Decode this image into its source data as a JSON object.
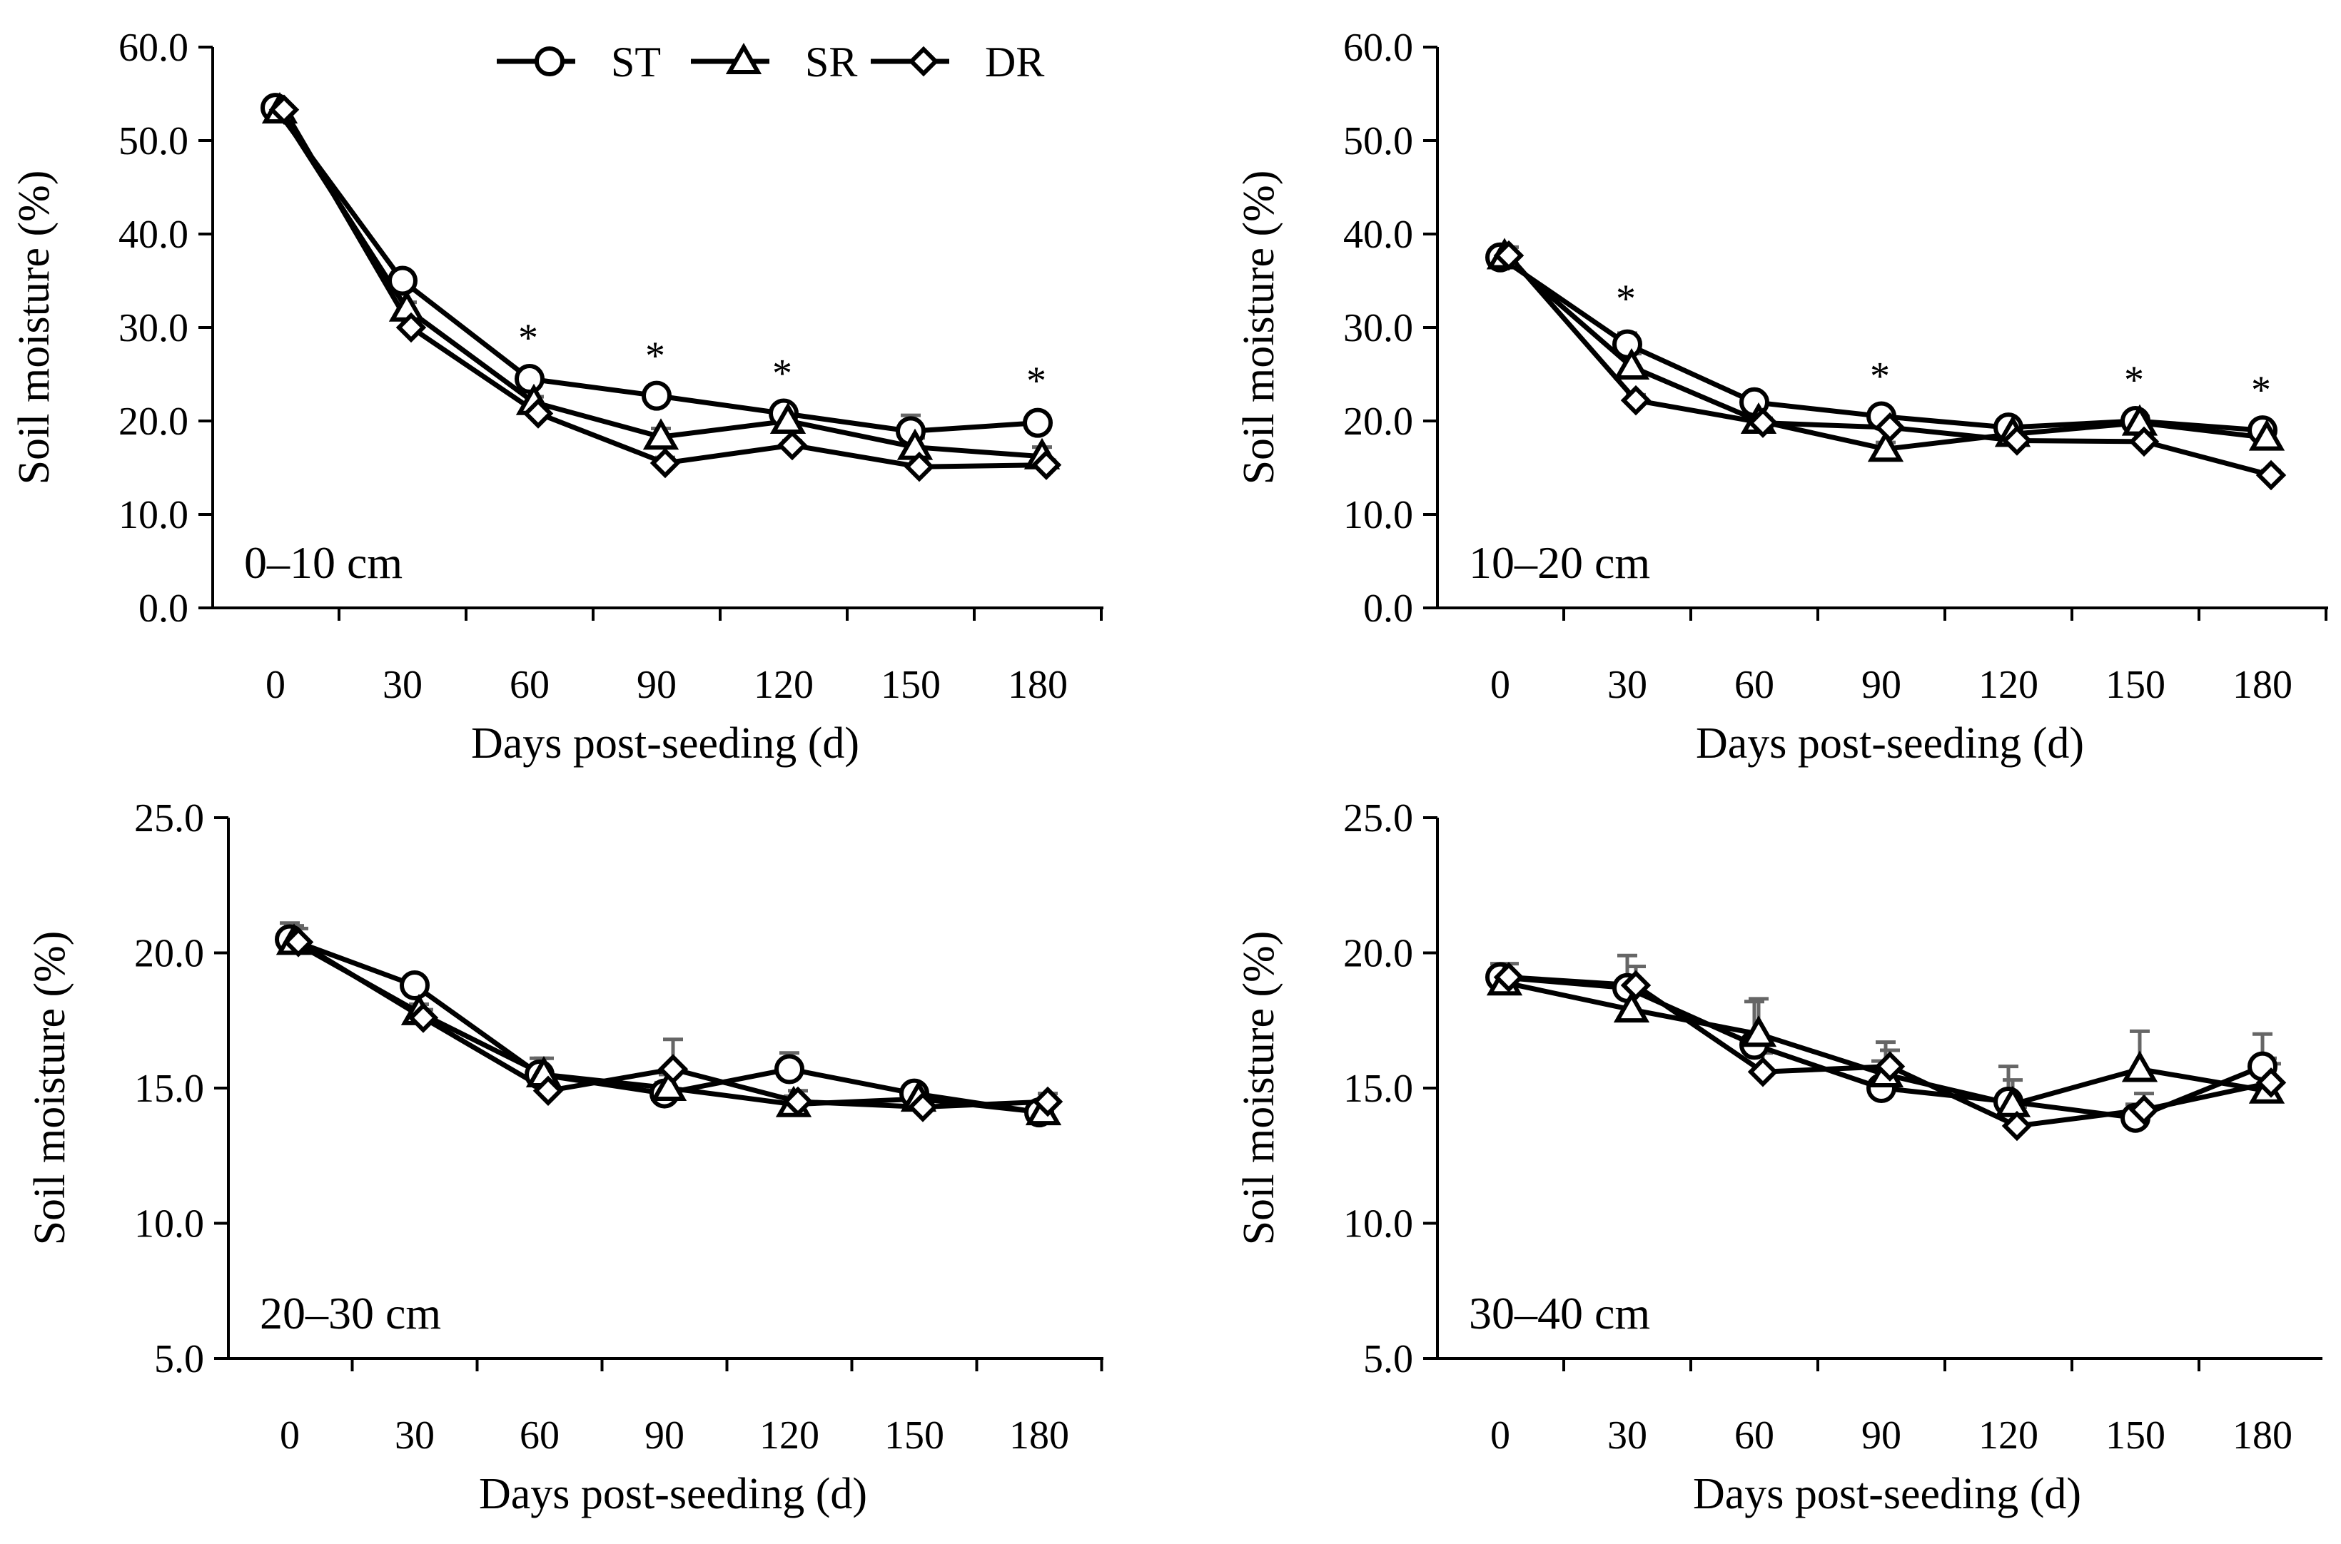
{
  "chart_data": [
    {
      "type": "line",
      "panel_label": "0–10 cm",
      "xlabel": "Days  post-seeding (d)",
      "ylabel": "Soil moisture (%)",
      "categories": [
        "0",
        "30",
        "60",
        "90",
        "120",
        "150",
        "180"
      ],
      "x": [
        0,
        30,
        60,
        90,
        120,
        150,
        180
      ],
      "ylim": [
        0,
        60
      ],
      "yticks": [
        "0.0",
        "10.0",
        "20.0",
        "30.0",
        "40.0",
        "50.0",
        "60.0"
      ],
      "series": [
        {
          "name": "ST",
          "values": [
            53.5,
            35.0,
            24.5,
            22.7,
            20.8,
            18.9,
            19.8
          ],
          "err": [
            0.5,
            0.6,
            0.7,
            0.6,
            0.6,
            1.7,
            0.8
          ]
        },
        {
          "name": "SR",
          "values": [
            53.2,
            32.0,
            22.0,
            18.3,
            20.0,
            17.2,
            16.2
          ],
          "err": [
            0.5,
            0.7,
            0.6,
            0.9,
            0.7,
            1.0,
            1.0
          ]
        },
        {
          "name": "DR",
          "values": [
            53.3,
            30.0,
            20.8,
            15.5,
            17.4,
            15.1,
            15.3
          ],
          "err": [
            0.4,
            0.5,
            0.5,
            0.6,
            0.5,
            0.5,
            0.5
          ]
        }
      ],
      "significance": [
        {
          "x": 60,
          "label": "*"
        },
        {
          "x": 90,
          "label": "*"
        },
        {
          "x": 120,
          "label": "*"
        },
        {
          "x": 180,
          "label": "*"
        }
      ],
      "legend": {
        "entries": [
          "ST",
          "SR",
          "DR"
        ],
        "placement": "top-right"
      }
    },
    {
      "type": "line",
      "panel_label": "10–20 cm",
      "xlabel": "Days  post-seeding (d)",
      "ylabel": "Soil moisture (%)",
      "categories": [
        "0",
        "30",
        "60",
        "90",
        "120",
        "150",
        "180"
      ],
      "x": [
        0,
        30,
        60,
        90,
        120,
        150,
        180
      ],
      "ylim": [
        0,
        60
      ],
      "yticks": [
        "0.0",
        "10.0",
        "20.0",
        "30.0",
        "40.0",
        "50.0",
        "60.0"
      ],
      "series": [
        {
          "name": "ST",
          "values": [
            37.5,
            28.2,
            22.0,
            20.5,
            19.3,
            20.0,
            19.0
          ],
          "err": [
            1.0,
            1.2,
            0.6,
            0.6,
            0.5,
            0.7,
            0.6
          ]
        },
        {
          "name": "SR",
          "values": [
            37.6,
            25.8,
            20.0,
            17.0,
            18.6,
            19.8,
            18.2
          ],
          "err": [
            1.0,
            1.4,
            0.6,
            0.7,
            0.6,
            0.7,
            0.6
          ]
        },
        {
          "name": "DR",
          "values": [
            37.7,
            22.2,
            19.8,
            19.3,
            17.9,
            17.8,
            14.2
          ],
          "err": [
            0.9,
            0.6,
            0.5,
            0.5,
            0.5,
            0.5,
            0.5
          ]
        }
      ],
      "significance": [
        {
          "x": 30,
          "label": "*"
        },
        {
          "x": 90,
          "label": "*"
        },
        {
          "x": 150,
          "label": "*"
        },
        {
          "x": 180,
          "label": "*"
        }
      ]
    },
    {
      "type": "line",
      "panel_label": "20–30 cm",
      "xlabel": "Days  post-seeding (d)",
      "ylabel": "Soil moisture (%)",
      "categories": [
        "0",
        "30",
        "60",
        "90",
        "120",
        "150",
        "180"
      ],
      "x": [
        0,
        30,
        60,
        90,
        120,
        150,
        180
      ],
      "ylim": [
        5,
        25
      ],
      "yticks": [
        "5.0",
        "10.0",
        "15.0",
        "20.0",
        "25.0"
      ],
      "series": [
        {
          "name": "ST",
          "values": [
            20.5,
            18.8,
            15.5,
            14.8,
            15.7,
            14.8,
            14.1
          ],
          "err": [
            0.6,
            0.3,
            0.6,
            0.4,
            0.6,
            0.3,
            0.3
          ]
        },
        {
          "name": "SR",
          "values": [
            20.4,
            17.8,
            15.5,
            15.0,
            14.4,
            14.6,
            14.1
          ],
          "err": [
            0.6,
            0.3,
            0.6,
            0.5,
            0.3,
            0.3,
            0.3
          ]
        },
        {
          "name": "DR",
          "values": [
            20.4,
            17.6,
            14.9,
            15.7,
            14.5,
            14.3,
            14.5
          ],
          "err": [
            0.5,
            0.3,
            0.5,
            1.1,
            0.4,
            0.3,
            0.3
          ]
        }
      ]
    },
    {
      "type": "line",
      "panel_label": "30–40 cm",
      "xlabel": "Days  post-seeding (d)",
      "ylabel": "Soil moisture (%)",
      "categories": [
        "0",
        "30",
        "60",
        "90",
        "120",
        "150",
        "180"
      ],
      "x": [
        0,
        30,
        60,
        90,
        120,
        150,
        180
      ],
      "ylim": [
        5,
        25
      ],
      "yticks": [
        "5.0",
        "10.0",
        "15.0",
        "20.0",
        "25.0"
      ],
      "series": [
        {
          "name": "ST",
          "values": [
            19.1,
            18.7,
            16.6,
            15.0,
            14.5,
            13.9,
            15.8
          ],
          "err": [
            0.5,
            1.2,
            1.6,
            1.0,
            1.3,
            0.5,
            1.2
          ]
        },
        {
          "name": "SR",
          "values": [
            18.9,
            17.9,
            17.0,
            15.5,
            14.4,
            15.7,
            14.9
          ],
          "err": [
            0.5,
            1.0,
            1.3,
            1.2,
            0.9,
            1.4,
            1.2
          ]
        },
        {
          "name": "DR",
          "values": [
            19.1,
            18.8,
            15.6,
            15.8,
            13.6,
            14.2,
            15.2
          ],
          "err": [
            0.5,
            0.7,
            0.7,
            0.6,
            0.7,
            0.6,
            0.7
          ]
        }
      ]
    }
  ]
}
